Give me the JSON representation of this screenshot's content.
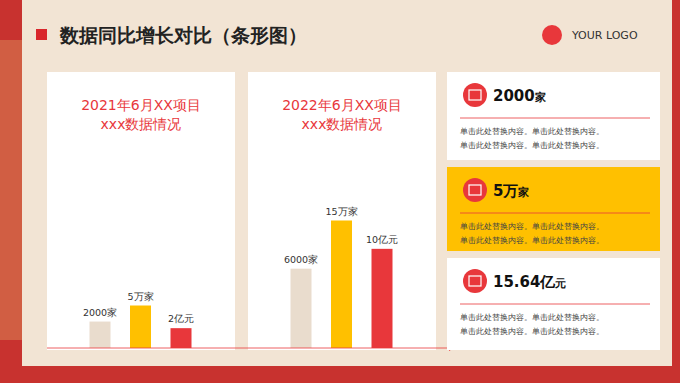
{
  "header": {
    "title": "数据同比增长对比（条形图）",
    "logo": "YOUR LOGO"
  },
  "chart_data": {
    "type": "bar",
    "categories": [
      "2021年6月XX项目\nxxx数据情况",
      "2022年6月XX项目\nxxx数据情况"
    ],
    "data_labels": true,
    "tick_labels": false,
    "series": [
      {
        "color": "#e9dccd",
        "values": [
          2000,
          6000
        ],
        "value_labels": [
          "2000家",
          "6000家"
        ],
        "ylim": [
          0,
          18000
        ]
      },
      {
        "color": "#ffc000",
        "values": [
          5,
          15
        ],
        "value_labels": [
          "5万家",
          "15万家"
        ],
        "ylim": [
          0,
          28
        ]
      },
      {
        "color": "#e8373b",
        "values": [
          2,
          10
        ],
        "value_labels": [
          "2亿元",
          "10亿元"
        ],
        "ylim": [
          0,
          24
        ]
      }
    ]
  },
  "cards": [
    {
      "value": "2000",
      "unit": "家",
      "text": [
        "单击此处替换内容。单击此处替换内容。",
        "单击此处替换内容。单击此处替换内容。"
      ]
    },
    {
      "value": "5万",
      "unit": "家",
      "text": [
        "单击此处替换内容。单击此处替换内容。",
        "单击此处替换内容。单击此处替换内容。"
      ]
    },
    {
      "value": "15.64亿",
      "unit": "元",
      "text": [
        "单击此处替换内容。单击此处替换内容。",
        "单击此处替换内容。单击此处替换内容。"
      ]
    }
  ]
}
